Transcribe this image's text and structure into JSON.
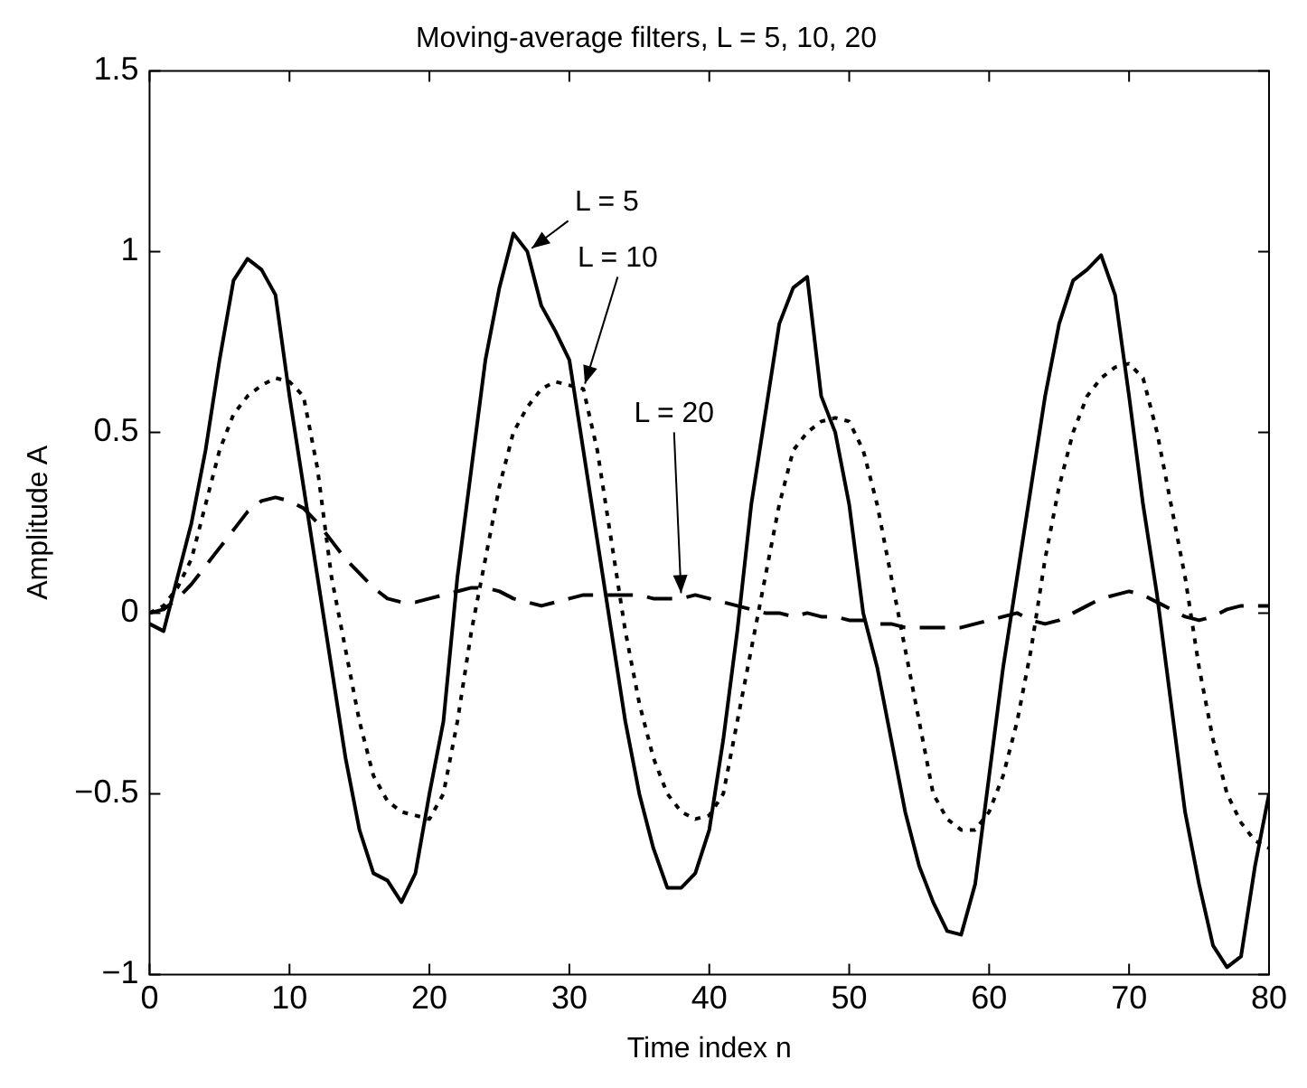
{
  "chart_data": {
    "type": "line",
    "title": "Moving-average filters, L = 5, 10, 20",
    "xlabel": "Time index n",
    "ylabel": "Amplitude A",
    "x": [
      0,
      1,
      2,
      3,
      4,
      5,
      6,
      7,
      8,
      9,
      10,
      11,
      12,
      13,
      14,
      15,
      16,
      17,
      18,
      19,
      20,
      21,
      22,
      23,
      24,
      25,
      26,
      27,
      28,
      29,
      30,
      31,
      32,
      33,
      34,
      35,
      36,
      37,
      38,
      39,
      40,
      41,
      42,
      43,
      44,
      45,
      46,
      47,
      48,
      49,
      50,
      51,
      52,
      53,
      54,
      55,
      56,
      57,
      58,
      59,
      60,
      61,
      62,
      63,
      64,
      65,
      66,
      67,
      68,
      69,
      70,
      71,
      72,
      73,
      74,
      75,
      76,
      77,
      78,
      79,
      80
    ],
    "series": [
      {
        "color": "#000000",
        "line_style": "solid",
        "values": [
          -0.03,
          -0.05,
          0.1,
          0.25,
          0.45,
          0.7,
          0.92,
          0.98,
          0.95,
          0.88,
          0.6,
          0.35,
          0.1,
          -0.15,
          -0.4,
          -0.6,
          -0.72,
          -0.74,
          -0.8,
          -0.72,
          -0.5,
          -0.3,
          0.1,
          0.4,
          0.7,
          0.9,
          1.05,
          1.0,
          0.85,
          0.78,
          0.7,
          0.45,
          0.2,
          -0.05,
          -0.3,
          -0.5,
          -0.65,
          -0.76,
          -0.76,
          -0.72,
          -0.6,
          -0.35,
          -0.05,
          0.3,
          0.55,
          0.8,
          0.9,
          0.93,
          0.6,
          0.5,
          0.3,
          0.0,
          -0.15,
          -0.35,
          -0.55,
          -0.7,
          -0.8,
          -0.88,
          -0.89,
          -0.75,
          -0.45,
          -0.15,
          0.1,
          0.35,
          0.6,
          0.8,
          0.92,
          0.95,
          0.99,
          0.88,
          0.6,
          0.3,
          0.05,
          -0.25,
          -0.55,
          -0.75,
          -0.92,
          -0.98,
          -0.95,
          -0.7,
          -0.5
        ]
      },
      {
        "color": "#000000",
        "line_style": "dotted",
        "values": [
          0,
          0.02,
          0.07,
          0.15,
          0.3,
          0.45,
          0.55,
          0.6,
          0.63,
          0.65,
          0.64,
          0.6,
          0.4,
          0.1,
          -0.1,
          -0.3,
          -0.45,
          -0.52,
          -0.55,
          -0.56,
          -0.57,
          -0.5,
          -0.3,
          -0.05,
          0.15,
          0.35,
          0.5,
          0.57,
          0.62,
          0.64,
          0.63,
          0.62,
          0.45,
          0.2,
          -0.05,
          -0.25,
          -0.4,
          -0.5,
          -0.55,
          -0.57,
          -0.56,
          -0.5,
          -0.3,
          -0.1,
          0.1,
          0.3,
          0.45,
          0.5,
          0.53,
          0.54,
          0.53,
          0.45,
          0.3,
          0.1,
          -0.1,
          -0.3,
          -0.5,
          -0.57,
          -0.6,
          -0.6,
          -0.55,
          -0.45,
          -0.3,
          -0.1,
          0.15,
          0.35,
          0.5,
          0.6,
          0.65,
          0.68,
          0.69,
          0.65,
          0.5,
          0.3,
          0.1,
          -0.15,
          -0.35,
          -0.5,
          -0.58,
          -0.63,
          -0.65
        ]
      },
      {
        "color": "#000000",
        "line_style": "dashed",
        "values": [
          0,
          0.01,
          0.04,
          0.08,
          0.13,
          0.18,
          0.23,
          0.28,
          0.31,
          0.32,
          0.31,
          0.29,
          0.25,
          0.2,
          0.15,
          0.11,
          0.07,
          0.04,
          0.03,
          0.03,
          0.04,
          0.05,
          0.06,
          0.07,
          0.07,
          0.06,
          0.04,
          0.03,
          0.02,
          0.03,
          0.04,
          0.05,
          0.05,
          0.05,
          0.05,
          0.05,
          0.04,
          0.04,
          0.04,
          0.05,
          0.04,
          0.03,
          0.02,
          0.01,
          0,
          0,
          -0.01,
          0,
          -0.01,
          -0.01,
          -0.02,
          -0.02,
          -0.03,
          -0.03,
          -0.04,
          -0.04,
          -0.04,
          -0.04,
          -0.04,
          -0.03,
          -0.02,
          -0.01,
          0,
          -0.02,
          -0.03,
          -0.02,
          0,
          0.02,
          0.04,
          0.05,
          0.06,
          0.05,
          0.03,
          0.01,
          -0.01,
          -0.02,
          -0.01,
          0.01,
          0.02,
          0.02,
          0.02
        ]
      }
    ],
    "annotations": [
      {
        "text": "L = 5",
        "x": 27,
        "y": 1.0
      },
      {
        "text": "L = 10",
        "x": 31,
        "y": 0.62
      },
      {
        "text": "L = 20",
        "x": 38,
        "y": 0.04
      }
    ],
    "xlim": [
      0,
      80
    ],
    "xticks": [
      0,
      10,
      20,
      30,
      40,
      50,
      60,
      70,
      80
    ],
    "ylim": [
      -1,
      1.5
    ],
    "yticks": [
      {
        "value": -1,
        "label": "−1"
      },
      {
        "value": -0.5,
        "label": "−0.5"
      },
      0,
      0.5,
      1,
      1.5
    ],
    "grid": false,
    "legend": false,
    "marker": "none"
  }
}
